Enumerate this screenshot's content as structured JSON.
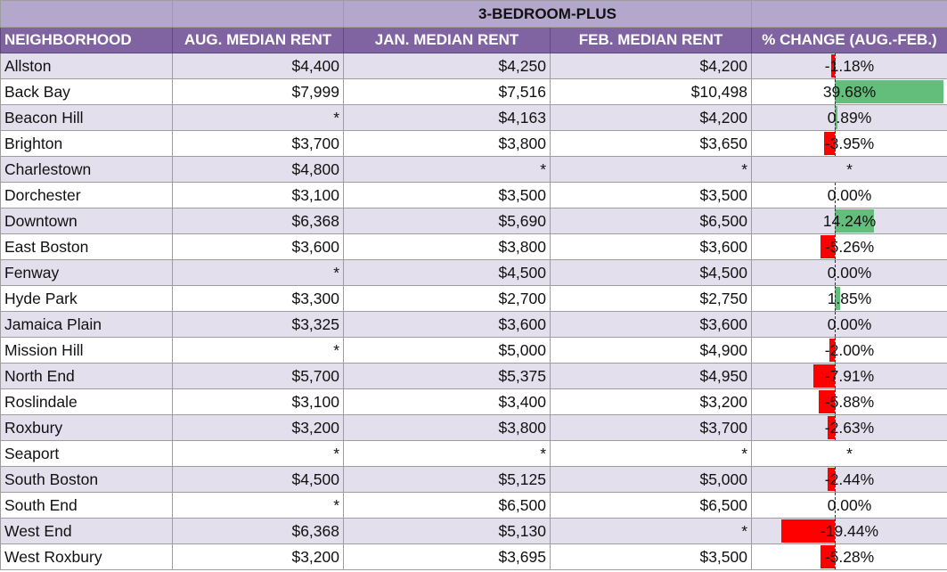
{
  "title": "3-BEDROOM-PLUS",
  "columns": [
    "NEIGHBORHOOD",
    "AUG. MEDIAN RENT",
    "JAN. MEDIAN RENT",
    "FEB. MEDIAN RENT",
    "% CHANGE (AUG.-FEB.)"
  ],
  "colors": {
    "header_bg": "#8064a2",
    "band_bg": "#e4dfed",
    "title_bg": "#b3a7cc",
    "positive_bar": "#63be7b",
    "negative_bar": "#ff0000"
  },
  "rows": [
    {
      "neighborhood": "Allston",
      "aug": "$4,400",
      "jan": "$4,250",
      "feb": "$4,200",
      "pct": "-1.18%",
      "value": -1.18
    },
    {
      "neighborhood": "Back Bay",
      "aug": "$7,999",
      "jan": "$7,516",
      "feb": "$10,498",
      "pct": "39.68%",
      "value": 39.68
    },
    {
      "neighborhood": "Beacon Hill",
      "aug": "*",
      "jan": "$4,163",
      "feb": "$4,200",
      "pct": "0.89%",
      "value": 0.89
    },
    {
      "neighborhood": "Brighton",
      "aug": "$3,700",
      "jan": "$3,800",
      "feb": "$3,650",
      "pct": "-3.95%",
      "value": -3.95
    },
    {
      "neighborhood": "Charlestown",
      "aug": "$4,800",
      "jan": "*",
      "feb": "*",
      "pct": "*",
      "value": null
    },
    {
      "neighborhood": "Dorchester",
      "aug": "$3,100",
      "jan": "$3,500",
      "feb": "$3,500",
      "pct": "0.00%",
      "value": 0
    },
    {
      "neighborhood": "Downtown",
      "aug": "$6,368",
      "jan": "$5,690",
      "feb": "$6,500",
      "pct": "14.24%",
      "value": 14.24
    },
    {
      "neighborhood": "East Boston",
      "aug": "$3,600",
      "jan": "$3,800",
      "feb": "$3,600",
      "pct": "-5.26%",
      "value": -5.26
    },
    {
      "neighborhood": "Fenway",
      "aug": "*",
      "jan": "$4,500",
      "feb": "$4,500",
      "pct": "0.00%",
      "value": 0
    },
    {
      "neighborhood": "Hyde Park",
      "aug": "$3,300",
      "jan": "$2,700",
      "feb": "$2,750",
      "pct": "1.85%",
      "value": 1.85
    },
    {
      "neighborhood": "Jamaica Plain",
      "aug": "$3,325",
      "jan": "$3,600",
      "feb": "$3,600",
      "pct": "0.00%",
      "value": 0
    },
    {
      "neighborhood": "Mission Hill",
      "aug": "*",
      "jan": "$5,000",
      "feb": "$4,900",
      "pct": "-2.00%",
      "value": -2.0
    },
    {
      "neighborhood": "North End",
      "aug": "$5,700",
      "jan": "$5,375",
      "feb": "$4,950",
      "pct": "-7.91%",
      "value": -7.91
    },
    {
      "neighborhood": "Roslindale",
      "aug": "$3,100",
      "jan": "$3,400",
      "feb": "$3,200",
      "pct": "-5.88%",
      "value": -5.88
    },
    {
      "neighborhood": "Roxbury",
      "aug": "$3,200",
      "jan": "$3,800",
      "feb": "$3,700",
      "pct": "-2.63%",
      "value": -2.63
    },
    {
      "neighborhood": "Seaport",
      "aug": "*",
      "jan": "*",
      "feb": "*",
      "pct": "*",
      "value": null
    },
    {
      "neighborhood": "South Boston",
      "aug": "$4,500",
      "jan": "$5,125",
      "feb": "$5,000",
      "pct": "-2.44%",
      "value": -2.44
    },
    {
      "neighborhood": "South End",
      "aug": "*",
      "jan": "$6,500",
      "feb": "$6,500",
      "pct": "0.00%",
      "value": 0
    },
    {
      "neighborhood": "West End",
      "aug": "$6,368",
      "jan": "$5,130",
      "feb": "*",
      "pct": "-19.44%",
      "value": -19.44
    },
    {
      "neighborhood": "West Roxbury",
      "aug": "$3,200",
      "jan": "$3,695",
      "feb": "$3,500",
      "pct": "-5.28%",
      "value": -5.28
    }
  ]
}
